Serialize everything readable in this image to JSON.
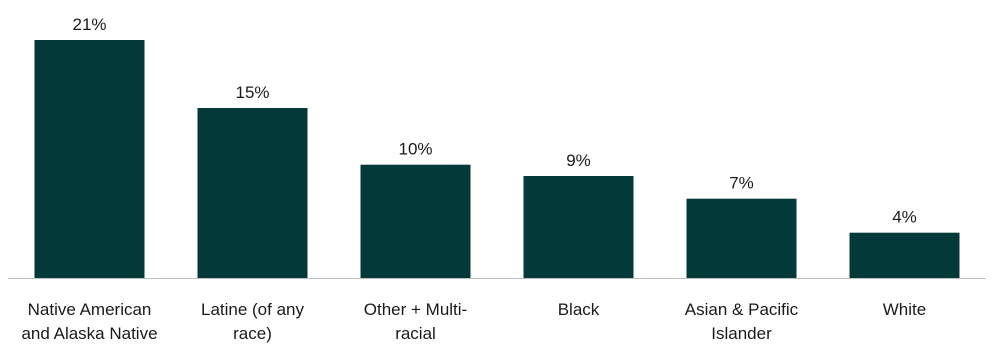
{
  "chart_data": {
    "type": "bar",
    "categories": [
      [
        "Native American",
        "and Alaska Native"
      ],
      [
        "Latine (of any",
        "race)"
      ],
      [
        "Other + Multi-",
        "racial"
      ],
      [
        "Black"
      ],
      [
        "Asian & Pacific",
        "Islander"
      ],
      [
        "White"
      ]
    ],
    "values": [
      21,
      15,
      10,
      9,
      7,
      4
    ],
    "value_labels": [
      "21%",
      "15%",
      "10%",
      "9%",
      "7%",
      "4%"
    ],
    "ylim": [
      0,
      21
    ],
    "grid": false,
    "legend": "none",
    "title": "",
    "xlabel": "",
    "ylabel": "",
    "colors": {
      "bar": "#04393a",
      "axis": "#bfbfbf",
      "text": "#1a1a1a"
    }
  }
}
